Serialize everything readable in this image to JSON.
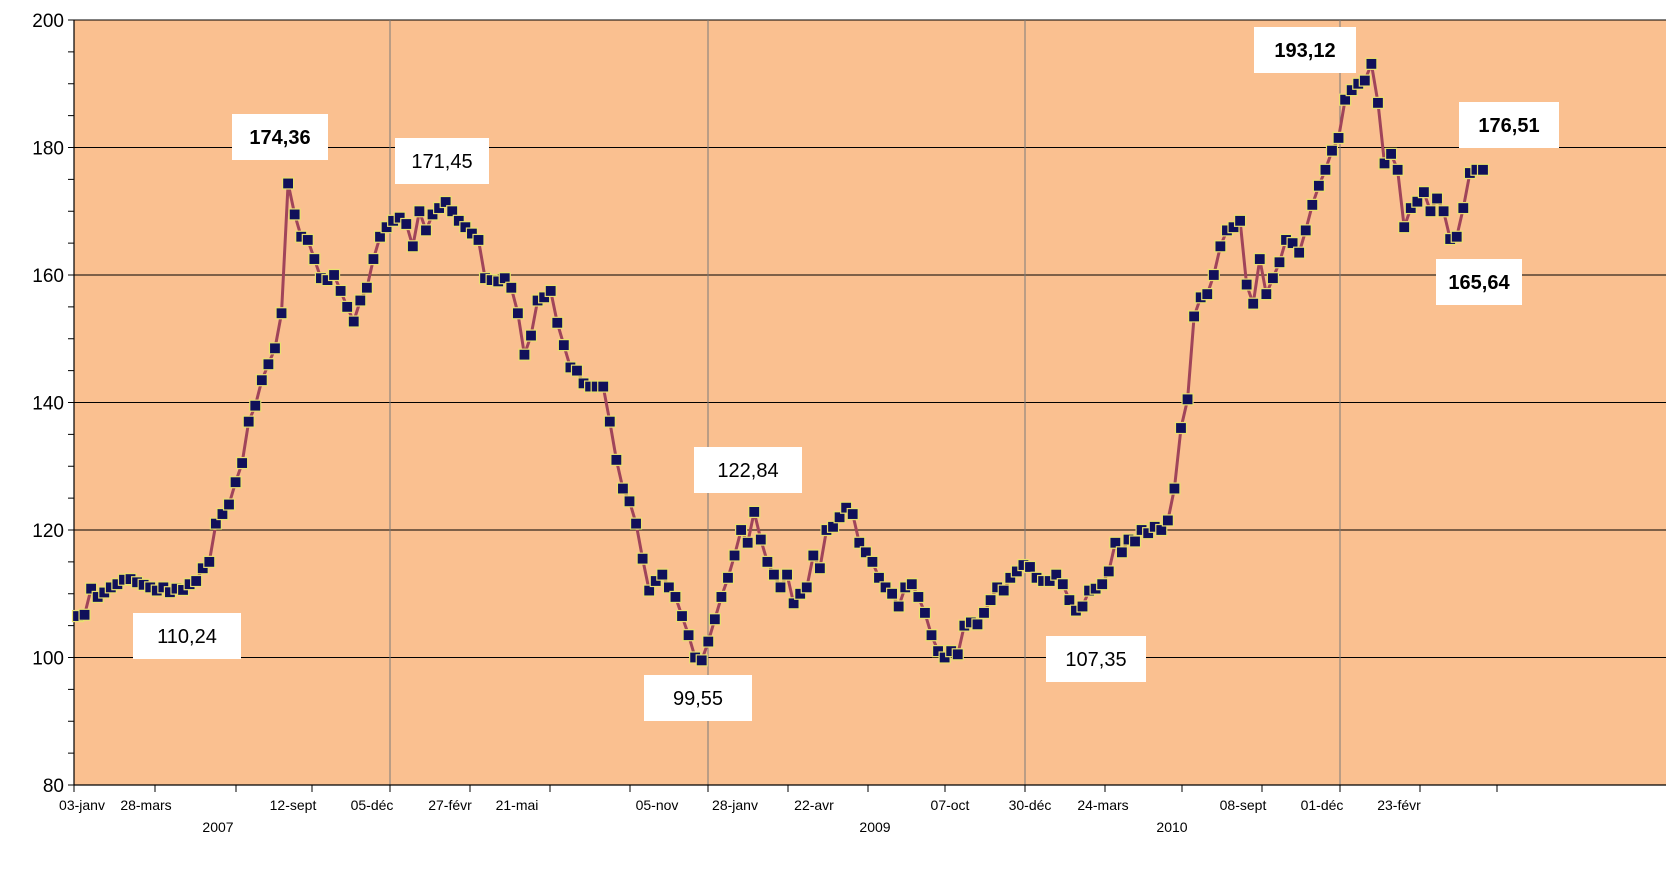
{
  "chart_data": {
    "type": "line",
    "title": "",
    "xlabel": "",
    "ylabel": "",
    "ylim": [
      80,
      200
    ],
    "yticks": [
      80,
      100,
      120,
      140,
      160,
      180,
      200
    ],
    "grid": "on",
    "plot_background": "#FAC090",
    "line_color": "#A0445A",
    "marker_color": "#10105A",
    "x_tick_labels": [
      "03-janv",
      "28-mars",
      "12-sept",
      "05-déc",
      "27-févr",
      "21-mai",
      "05-nov",
      "28-janv",
      "22-avr",
      "07-oct",
      "30-déc",
      "24-mars",
      "08-sept",
      "01-déc",
      "23-févr"
    ],
    "year_labels": [
      "2007",
      "2009",
      "2010"
    ],
    "series": [
      {
        "values": [
          106.5,
          106.7,
          110.8,
          109.5,
          110.2,
          111.0,
          111.5,
          112.2,
          112.3,
          111.8,
          111.4,
          111.0,
          110.5,
          111.0,
          110.24,
          110.8,
          110.6,
          111.5,
          112.0,
          114.0,
          115.0,
          121.0,
          122.5,
          124.0,
          127.5,
          130.5,
          137.0,
          139.5,
          143.5,
          146.0,
          148.5,
          154.0,
          174.36,
          169.5,
          166.0,
          165.5,
          162.5,
          159.5,
          159.2,
          160.0,
          157.5,
          155.0,
          152.7,
          156.0,
          158.0,
          162.5,
          166.0,
          167.5,
          168.5,
          169.0,
          168.0,
          164.5,
          170.0,
          167.0,
          169.5,
          170.5,
          171.45,
          170.0,
          168.5,
          167.5,
          166.5,
          165.5,
          159.5,
          159.2,
          159.0,
          159.5,
          158.0,
          154.0,
          147.5,
          150.5,
          156.0,
          156.5,
          157.5,
          152.5,
          149.0,
          145.5,
          145.0,
          143.0,
          142.5,
          142.5,
          142.5,
          137.0,
          131.0,
          126.5,
          124.5,
          121.0,
          115.5,
          110.5,
          112.0,
          113.0,
          111.0,
          109.5,
          106.5,
          103.5,
          100.0,
          99.55,
          102.5,
          106.0,
          109.5,
          112.5,
          116.0,
          120.0,
          118.0,
          122.84,
          118.5,
          115.0,
          113.0,
          111.0,
          113.0,
          108.5,
          110.0,
          111.0,
          116.0,
          114.0,
          120.0,
          120.5,
          122.0,
          123.5,
          122.5,
          118.0,
          116.5,
          115.0,
          112.5,
          111.0,
          110.0,
          108.0,
          111.0,
          111.5,
          109.5,
          107.0,
          103.5,
          101.0,
          100.0,
          101.0,
          100.5,
          105.0,
          105.5,
          105.2,
          107.0,
          109.0,
          111.0,
          110.5,
          112.5,
          113.5,
          114.5,
          114.2,
          112.5,
          112.0,
          112.0,
          113.0,
          111.5,
          109.0,
          107.35,
          108.0,
          110.5,
          110.8,
          111.5,
          113.5,
          118.0,
          116.5,
          118.5,
          118.2,
          120.0,
          119.5,
          120.5,
          120.0,
          121.5,
          126.5,
          136.0,
          140.5,
          153.5,
          156.5,
          157.0,
          160.0,
          164.5,
          167.0,
          167.5,
          168.5,
          158.5,
          155.5,
          162.5,
          157.0,
          159.5,
          162.0,
          165.5,
          165.0,
          163.5,
          167.0,
          171.0,
          174.0,
          176.5,
          179.5,
          181.5,
          187.5,
          189.0,
          190.0,
          190.5,
          193.12,
          187.0,
          177.5,
          179.0,
          176.5,
          167.5,
          170.5,
          171.5,
          173.0,
          170.0,
          172.0,
          170.0,
          165.64,
          166.0,
          170.5,
          176.0,
          176.51,
          176.5
        ]
      }
    ],
    "annotations": [
      {
        "label": "174,36",
        "value": 174.36,
        "bold": true
      },
      {
        "label": "171,45",
        "value": 171.45,
        "bold": false
      },
      {
        "label": "110,24",
        "value": 110.24,
        "bold": false
      },
      {
        "label": "99,55",
        "value": 99.55,
        "bold": false
      },
      {
        "label": "122,84",
        "value": 122.84,
        "bold": false
      },
      {
        "label": "107,35",
        "value": 107.35,
        "bold": false
      },
      {
        "label": "193,12",
        "value": 193.12,
        "bold": true
      },
      {
        "label": "176,51",
        "value": 176.51,
        "bold": true
      },
      {
        "label": "165,64",
        "value": 165.64,
        "bold": true
      }
    ]
  }
}
